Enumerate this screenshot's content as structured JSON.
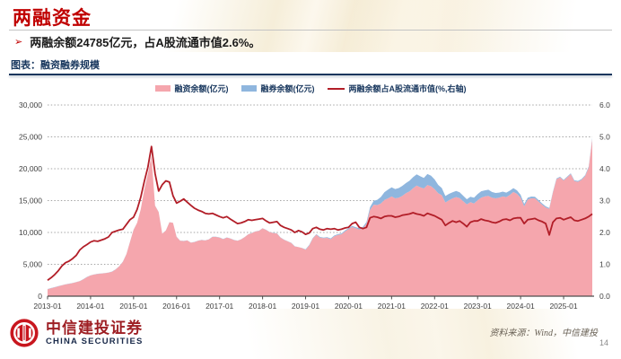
{
  "slide": {
    "title": "两融资金",
    "bullet_marker": "➢",
    "bullet": "两融余额24785亿元，占A股流通市值2.6%。",
    "caption": "图表：融资融券规模",
    "footer": {
      "logo_cn": "中信建投证券",
      "logo_en": "CHINA SECURITIES",
      "source": "资料来源：Wind，中信建投",
      "page": "14"
    }
  },
  "colors": {
    "title_red": "#C00000",
    "navy": "#17365D",
    "financing_fill": "#F5A6AD",
    "lending_fill": "#8FB6DE",
    "ratio_line": "#B21E28",
    "axis_text": "#404040",
    "gridline": "#a6a6a6",
    "logo_red": "#C8161E"
  },
  "chart_data": {
    "type": "area",
    "title": "融资融券规模",
    "grid": true,
    "legend_position": "top",
    "legend": [
      {
        "label": "融资余额(亿元)",
        "color": "#F5A6AD",
        "kind": "area"
      },
      {
        "label": "融券余额(亿元)",
        "color": "#8FB6DE",
        "kind": "area"
      },
      {
        "label": "两融余额占A股流通市值(%,右轴)",
        "color": "#B21E28",
        "kind": "line"
      }
    ],
    "x_start": "2013-01",
    "x_interval": "monthly",
    "x_tick_labels": [
      "2013-01",
      "2014-01",
      "2015-01",
      "2016-01",
      "2017-01",
      "2018-01",
      "2019-01",
      "2020-01",
      "2021-01",
      "2022-01",
      "2023-01",
      "2024-01",
      "2025-01"
    ],
    "left_axis": {
      "ticks": [
        "30,000",
        "25,000",
        "20,000",
        "15,000",
        "10,000",
        "5,000",
        "0"
      ],
      "min": 0,
      "max": 30000
    },
    "right_axis": {
      "ticks": [
        "6.0",
        "5.0",
        "4.0",
        "3.0",
        "2.0",
        "1.0",
        "0.0"
      ],
      "min": 0,
      "max": 6.0
    },
    "series": [
      {
        "name": "融资余额(亿元)",
        "axis": "left",
        "kind": "area",
        "values": [
          1100,
          1250,
          1400,
          1550,
          1700,
          1850,
          1950,
          2050,
          2200,
          2350,
          2650,
          3000,
          3250,
          3400,
          3500,
          3550,
          3600,
          3700,
          3850,
          4200,
          4700,
          5400,
          6600,
          8500,
          10400,
          11500,
          13600,
          16700,
          19200,
          22000,
          14200,
          13200,
          9800,
          10300,
          11600,
          11500,
          9300,
          8700,
          8650,
          8750,
          8400,
          8500,
          8700,
          8800,
          8750,
          8900,
          9300,
          9300,
          9200,
          8950,
          9200,
          9050,
          8800,
          8700,
          8900,
          9250,
          9700,
          9900,
          10150,
          10250,
          10650,
          10400,
          10050,
          9900,
          9850,
          9200,
          8850,
          8600,
          8350,
          7800,
          7700,
          7550,
          7300,
          7950,
          9050,
          9650,
          9200,
          9100,
          9150,
          8950,
          9400,
          9600,
          9700,
          10150,
          10500,
          10850,
          10650,
          10450,
          10650,
          11350,
          13550,
          14350,
          14300,
          14550,
          15100,
          15350,
          15650,
          15350,
          15450,
          15750,
          16150,
          16450,
          16950,
          17350,
          17100,
          16900,
          17450,
          17250,
          16800,
          16150,
          15850,
          14700,
          15050,
          15350,
          15550,
          15400,
          14900,
          14400,
          14750,
          14550,
          15050,
          15450,
          15650,
          15750,
          15450,
          15350,
          15450,
          15650,
          15550,
          15900,
          16350,
          16050,
          15450,
          14100,
          15150,
          15350,
          15350,
          14850,
          14350,
          13900,
          13700,
          16250,
          18350,
          18650,
          18150,
          18650,
          19150,
          18050,
          17950,
          18250,
          18850,
          20200,
          24650
        ]
      },
      {
        "name": "融券余额(亿元)",
        "axis": "left",
        "kind": "area",
        "stacked_on": "融资余额(亿元)",
        "values": [
          25,
          25,
          25,
          25,
          25,
          25,
          25,
          25,
          25,
          25,
          25,
          25,
          25,
          25,
          25,
          25,
          25,
          25,
          25,
          25,
          25,
          25,
          25,
          25,
          25,
          25,
          25,
          25,
          25,
          25,
          25,
          25,
          25,
          25,
          25,
          25,
          25,
          25,
          25,
          25,
          25,
          25,
          25,
          25,
          25,
          25,
          25,
          25,
          25,
          25,
          25,
          25,
          25,
          25,
          25,
          25,
          25,
          25,
          25,
          25,
          25,
          25,
          25,
          25,
          25,
          25,
          25,
          25,
          25,
          25,
          25,
          25,
          70,
          75,
          80,
          85,
          90,
          95,
          105,
          115,
          125,
          135,
          145,
          155,
          165,
          175,
          185,
          205,
          235,
          290,
          420,
          620,
          820,
          1020,
          1220,
          1370,
          1420,
          1470,
          1520,
          1560,
          1600,
          1660,
          1720,
          1770,
          1720,
          1670,
          1720,
          1670,
          1520,
          1320,
          1120,
          1020,
          1010,
          960,
          950,
          910,
          860,
          810,
          860,
          910,
          960,
          1010,
          960,
          950,
          900,
          850,
          810,
          760,
          710,
          660,
          610,
          560,
          460,
          360,
          310,
          280,
          260,
          240,
          220,
          200,
          150,
          120,
          110,
          100,
          110,
          120,
          130,
          130,
          130,
          130,
          140,
          150,
          160
        ]
      },
      {
        "name": "两融余额占A股流通市值(%,右轴)",
        "axis": "right",
        "kind": "line",
        "values": [
          0.5,
          0.58,
          0.68,
          0.8,
          0.95,
          1.05,
          1.1,
          1.18,
          1.28,
          1.45,
          1.55,
          1.62,
          1.7,
          1.74,
          1.72,
          1.76,
          1.8,
          1.86,
          2.0,
          2.04,
          2.08,
          2.1,
          2.25,
          2.4,
          2.48,
          2.72,
          3.1,
          3.6,
          4.05,
          4.7,
          3.85,
          3.3,
          3.5,
          3.62,
          3.58,
          3.15,
          2.92,
          2.98,
          3.05,
          2.95,
          2.85,
          2.76,
          2.7,
          2.66,
          2.6,
          2.58,
          2.6,
          2.55,
          2.5,
          2.46,
          2.5,
          2.42,
          2.35,
          2.28,
          2.3,
          2.34,
          2.4,
          2.38,
          2.4,
          2.42,
          2.44,
          2.36,
          2.3,
          2.32,
          2.34,
          2.22,
          2.16,
          2.12,
          2.08,
          2.0,
          2.06,
          2.02,
          1.94,
          1.98,
          2.12,
          2.16,
          2.1,
          2.08,
          2.12,
          2.1,
          2.12,
          2.08,
          2.1,
          2.14,
          2.16,
          2.28,
          2.32,
          2.16,
          2.12,
          2.16,
          2.46,
          2.5,
          2.48,
          2.44,
          2.5,
          2.52,
          2.52,
          2.48,
          2.5,
          2.54,
          2.56,
          2.58,
          2.62,
          2.58,
          2.56,
          2.52,
          2.6,
          2.56,
          2.52,
          2.46,
          2.4,
          2.22,
          2.3,
          2.36,
          2.32,
          2.36,
          2.28,
          2.18,
          2.32,
          2.36,
          2.36,
          2.42,
          2.38,
          2.36,
          2.32,
          2.3,
          2.34,
          2.4,
          2.42,
          2.38,
          2.44,
          2.46,
          2.46,
          2.28,
          2.4,
          2.42,
          2.44,
          2.38,
          2.34,
          2.28,
          1.92,
          2.32,
          2.44,
          2.46,
          2.4,
          2.44,
          2.48,
          2.38,
          2.36,
          2.4,
          2.44,
          2.5,
          2.58
        ]
      }
    ]
  }
}
